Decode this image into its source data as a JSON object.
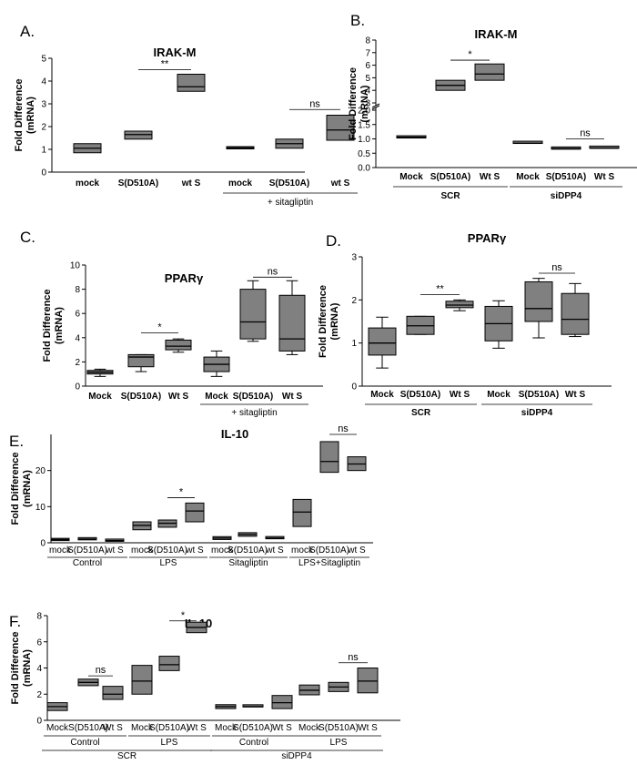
{
  "chart_data": [
    {
      "panel": "A.",
      "type": "box",
      "title": "IRAK-M",
      "ylabel": "Fold Difference (mRNA)",
      "ylim": [
        0,
        5
      ],
      "yticks": [
        0,
        1,
        2,
        3,
        4,
        5
      ],
      "categories": [
        "mock",
        "S(D510A)",
        "wt S",
        "mock",
        "S(D510A)",
        "wt S"
      ],
      "groups": [
        {
          "label": "+ sitagliptin",
          "from": 3,
          "to": 5
        }
      ],
      "boxes": [
        {
          "q1": 0.85,
          "median": 1.05,
          "q3": 1.25
        },
        {
          "q1": 1.45,
          "median": 1.65,
          "q3": 1.8
        },
        {
          "q1": 3.55,
          "median": 3.75,
          "q3": 4.3
        },
        {
          "q1": 1.02,
          "median": 1.07,
          "q3": 1.12
        },
        {
          "q1": 1.05,
          "median": 1.25,
          "q3": 1.45
        },
        {
          "q1": 1.4,
          "median": 1.85,
          "q3": 2.5
        }
      ],
      "significance": [
        {
          "from": 1,
          "to": 2,
          "label": "**",
          "y": 4.5
        },
        {
          "from": 4,
          "to": 5,
          "label": "ns",
          "y": 2.75
        }
      ]
    },
    {
      "panel": "B.",
      "type": "box",
      "title": "IRAK-M",
      "ylabel": "Fold Difference (mRNA)",
      "broken_axis": {
        "lower": [
          0,
          2
        ],
        "upper": [
          3,
          8
        ]
      },
      "yticks": [
        0.0,
        0.5,
        1.0,
        1.5,
        2.0,
        3,
        4,
        5,
        6,
        7,
        8
      ],
      "categories": [
        "Mock",
        "S(D510A)",
        "Wt S",
        "Mock",
        "S(D510A)",
        "Wt S"
      ],
      "groups": [
        {
          "label": "SCR",
          "from": 0,
          "to": 2
        },
        {
          "label": "siDPP4",
          "from": 3,
          "to": 5
        }
      ],
      "boxes": [
        {
          "q1": 1.03,
          "median": 1.06,
          "q3": 1.09
        },
        {
          "q1": 4.0,
          "median": 4.4,
          "q3": 4.8
        },
        {
          "q1": 4.8,
          "median": 5.3,
          "q3": 6.1
        },
        {
          "q1": 0.84,
          "median": 0.85,
          "q3": 0.86
        },
        {
          "q1": 0.64,
          "median": 0.66,
          "q3": 0.68
        },
        {
          "q1": 0.67,
          "median": 0.68,
          "q3": 0.69
        }
      ],
      "significance": [
        {
          "from": 1,
          "to": 2,
          "label": "*",
          "y": 6.4
        },
        {
          "from": 4,
          "to": 5,
          "label": "ns",
          "y": 1.0
        }
      ]
    },
    {
      "panel": "C.",
      "type": "box",
      "title": "PPARγ",
      "ylabel": "Fold Difference (mRNA)",
      "ylim": [
        0,
        10
      ],
      "yticks": [
        0,
        2,
        4,
        6,
        8,
        10
      ],
      "categories": [
        "Mock",
        "S(D510A)",
        "Wt S",
        "Mock",
        "S(D510A)",
        "Wt S"
      ],
      "groups": [
        {
          "label": "+ sitagliptin",
          "from": 3,
          "to": 5
        }
      ],
      "boxes": [
        {
          "min": 0.8,
          "q1": 1.0,
          "median": 1.15,
          "q3": 1.3,
          "max": 1.4
        },
        {
          "min": 1.2,
          "q1": 1.6,
          "median": 2.4,
          "q3": 2.6,
          "max": 2.6
        },
        {
          "min": 2.8,
          "q1": 3.0,
          "median": 3.3,
          "q3": 3.8,
          "max": 3.9
        },
        {
          "min": 0.8,
          "q1": 1.2,
          "median": 1.8,
          "q3": 2.4,
          "max": 2.9
        },
        {
          "min": 3.7,
          "q1": 3.9,
          "median": 5.3,
          "q3": 8.0,
          "max": 8.7
        },
        {
          "min": 2.6,
          "q1": 2.9,
          "median": 3.9,
          "q3": 7.5,
          "max": 8.7
        }
      ],
      "significance": [
        {
          "from": 1,
          "to": 2,
          "label": "*",
          "y": 4.4
        },
        {
          "from": 4,
          "to": 5,
          "label": "ns",
          "y": 9.0
        }
      ]
    },
    {
      "panel": "D.",
      "type": "box",
      "title": "PPARγ",
      "ylabel": "Fold Difference (mRNA)",
      "ylim": [
        0,
        3
      ],
      "yticks": [
        0,
        1,
        2,
        3
      ],
      "categories": [
        "Mock",
        "S(D510A)",
        "Wt S",
        "Mock",
        "S(D510A)",
        "Wt S"
      ],
      "groups": [
        {
          "label": "SCR",
          "from": 0,
          "to": 2
        },
        {
          "label": "siDPP4",
          "from": 3,
          "to": 5
        }
      ],
      "boxes": [
        {
          "min": 0.42,
          "q1": 0.72,
          "median": 1.0,
          "q3": 1.35,
          "max": 1.6
        },
        {
          "min": 1.2,
          "q1": 1.2,
          "median": 1.4,
          "q3": 1.62,
          "max": 1.62
        },
        {
          "min": 1.75,
          "q1": 1.82,
          "median": 1.88,
          "q3": 1.97,
          "max": 2.0
        },
        {
          "min": 0.88,
          "q1": 1.05,
          "median": 1.45,
          "q3": 1.85,
          "max": 1.98
        },
        {
          "min": 1.12,
          "q1": 1.5,
          "median": 1.8,
          "q3": 2.42,
          "max": 2.5
        },
        {
          "min": 1.15,
          "q1": 1.2,
          "median": 1.55,
          "q3": 2.15,
          "max": 2.38
        }
      ],
      "significance": [
        {
          "from": 1,
          "to": 2,
          "label": "**",
          "y": 2.12
        },
        {
          "from": 4,
          "to": 5,
          "label": "ns",
          "y": 2.62
        }
      ]
    },
    {
      "panel": "E.",
      "type": "box",
      "title": "IL-10",
      "ylabel": "Fold Difference (mRNA)",
      "ylim": [
        0,
        30
      ],
      "yticks": [
        0,
        10,
        20
      ],
      "categories": [
        "mock",
        "S(D510A)",
        "wt S",
        "mock",
        "S(D510A)",
        "wt S",
        "mock",
        "S(D510A)",
        "wt S",
        "mock",
        "S(D510A)",
        "wt S"
      ],
      "groups": [
        {
          "label": "Control",
          "from": 0,
          "to": 2
        },
        {
          "label": "LPS",
          "from": 3,
          "to": 5
        },
        {
          "label": "Sitagliptin",
          "from": 6,
          "to": 8
        },
        {
          "label": "LPS+Sitagliptin",
          "from": 9,
          "to": 11
        }
      ],
      "boxes": [
        {
          "q1": 0.6,
          "median": 0.9,
          "q3": 1.1
        },
        {
          "q1": 0.8,
          "median": 1.0,
          "q3": 1.2
        },
        {
          "q1": 0.4,
          "median": 0.6,
          "q3": 0.9
        },
        {
          "q1": 3.6,
          "median": 4.8,
          "q3": 5.8
        },
        {
          "q1": 4.3,
          "median": 5.4,
          "q3": 6.3
        },
        {
          "q1": 5.8,
          "median": 8.8,
          "q3": 11.0
        },
        {
          "q1": 0.9,
          "median": 1.3,
          "q3": 1.7
        },
        {
          "q1": 1.8,
          "median": 2.3,
          "q3": 2.8
        },
        {
          "q1": 1.1,
          "median": 1.3,
          "q3": 1.5
        },
        {
          "q1": 4.5,
          "median": 8.5,
          "q3": 12.0
        },
        {
          "q1": 19.5,
          "median": 22.5,
          "q3": 28.0
        },
        {
          "q1": 20.0,
          "median": 21.8,
          "q3": 23.8
        }
      ],
      "significance": [
        {
          "from": 4,
          "to": 5,
          "label": "*",
          "y": 12.5
        },
        {
          "from": 10,
          "to": 11,
          "label": "ns",
          "y": 30.0
        }
      ]
    },
    {
      "panel": "F.",
      "type": "box",
      "title": "IL-10",
      "ylabel": "Fold Difference (mRNA)",
      "ylim": [
        0,
        8
      ],
      "yticks": [
        0,
        2,
        4,
        6,
        8
      ],
      "categories": [
        "Mock",
        "S(D510A)",
        "Wt S",
        "Mock",
        "S(D510A)",
        "Wt S",
        "Mock",
        "S(D510A)",
        "Wt S",
        "Mock",
        "S(D510A)",
        "Wt S"
      ],
      "groups": [
        {
          "label": "Control",
          "from": 0,
          "to": 2
        },
        {
          "label": "LPS",
          "from": 3,
          "to": 5
        },
        {
          "label": "Control",
          "from": 6,
          "to": 8
        },
        {
          "label": "LPS",
          "from": 9,
          "to": 11
        }
      ],
      "supergroups": [
        {
          "label": "SCR",
          "from": 0,
          "to": 5
        },
        {
          "label": "siDPP4",
          "from": 6,
          "to": 11
        }
      ],
      "boxes": [
        {
          "q1": 0.75,
          "median": 1.05,
          "q3": 1.35
        },
        {
          "q1": 2.65,
          "median": 2.9,
          "q3": 3.15
        },
        {
          "q1": 1.6,
          "median": 2.0,
          "q3": 2.6
        },
        {
          "q1": 2.0,
          "median": 3.0,
          "q3": 4.2
        },
        {
          "q1": 3.8,
          "median": 4.25,
          "q3": 4.9
        },
        {
          "q1": 6.7,
          "median": 7.1,
          "q3": 7.5
        },
        {
          "q1": 0.9,
          "median": 1.05,
          "q3": 1.2
        },
        {
          "q1": 1.02,
          "median": 1.05,
          "q3": 1.08
        },
        {
          "q1": 0.9,
          "median": 1.35,
          "q3": 1.9
        },
        {
          "q1": 1.95,
          "median": 2.3,
          "q3": 2.7
        },
        {
          "q1": 2.2,
          "median": 2.55,
          "q3": 2.9
        },
        {
          "q1": 2.1,
          "median": 3.0,
          "q3": 4.0
        }
      ],
      "significance": [
        {
          "from": 4,
          "to": 5,
          "label": "*",
          "y": 7.6
        },
        {
          "from": 1,
          "to": 2,
          "label": "ns",
          "y": 3.4
        },
        {
          "from": 10,
          "to": 11,
          "label": "ns",
          "y": 4.4
        }
      ]
    }
  ]
}
